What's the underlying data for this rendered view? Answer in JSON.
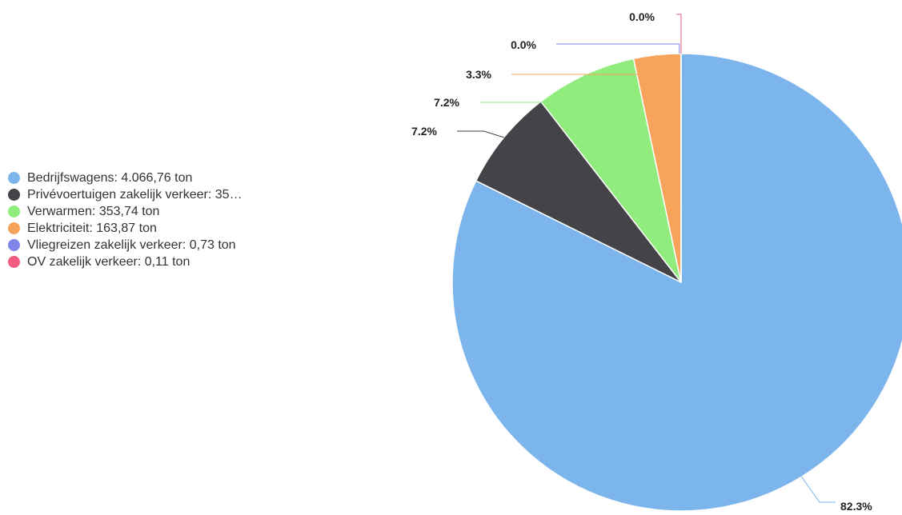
{
  "chart_data": {
    "type": "pie",
    "title": "",
    "unit": "ton",
    "legend_position": "left",
    "slices": [
      {
        "name": "Bedrijfswagens",
        "legend_label": "Bedrijfswagens: 4.066,76 ton",
        "value": 4066.76,
        "percent_label": "82.3%",
        "color": "#7cb5ec"
      },
      {
        "name": "Privévoertuigen zakelijk verkeer",
        "legend_label": "Privévoertuigen zakelijk verkeer: 35…",
        "value": 355.0,
        "percent_label": "7.2%",
        "color": "#434348"
      },
      {
        "name": "Verwarmen",
        "legend_label": "Verwarmen: 353,74 ton",
        "value": 353.74,
        "percent_label": "7.2%",
        "color": "#90ed7d"
      },
      {
        "name": "Elektriciteit",
        "legend_label": "Elektriciteit: 163,87 ton",
        "value": 163.87,
        "percent_label": "3.3%",
        "color": "#f7a35c"
      },
      {
        "name": "Vliegreizen zakelijk verkeer",
        "legend_label": "Vliegreizen zakelijk verkeer: 0,73 ton",
        "value": 0.73,
        "percent_label": "0.0%",
        "color": "#8085e9"
      },
      {
        "name": "OV zakelijk verkeer",
        "legend_label": "OV zakelijk verkeer: 0,11 ton",
        "value": 0.11,
        "percent_label": "0.0%",
        "color": "#f15c80"
      }
    ]
  }
}
